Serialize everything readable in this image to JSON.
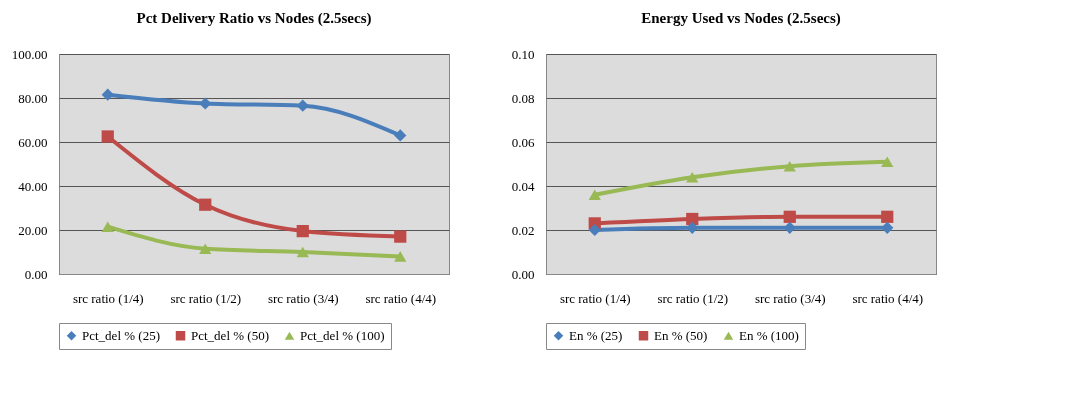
{
  "chart_data": [
    {
      "type": "line",
      "title": "Pct Delivery Ratio vs Nodes (2.5secs)",
      "categories": [
        "src ratio (1/4)",
        "src ratio (1/2)",
        "src ratio (3/4)",
        "src ratio (4/4)"
      ],
      "series": [
        {
          "name": "Pct_del % (25)",
          "color": "#4a7ebb",
          "marker": "diamond",
          "values": [
            81.5,
            77.5,
            76.5,
            63
          ]
        },
        {
          "name": "Pct_del % (50)",
          "color": "#be4b48",
          "marker": "square",
          "values": [
            62.5,
            31.5,
            19.5,
            17
          ]
        },
        {
          "name": "Pct_del % (100)",
          "color": "#98b954",
          "marker": "triangle",
          "values": [
            21.5,
            11.5,
            10,
            8
          ]
        }
      ],
      "ylim": [
        0,
        100
      ],
      "yticks": [
        {
          "value": 0,
          "label": "0.00"
        },
        {
          "value": 20,
          "label": "20.00"
        },
        {
          "value": 40,
          "label": "40.00"
        },
        {
          "value": 60,
          "label": "60.00"
        },
        {
          "value": 80,
          "label": "80.00"
        },
        {
          "value": 100,
          "label": "100.00"
        }
      ],
      "grid": "y",
      "legend": "bottom"
    },
    {
      "type": "line",
      "title": "Energy Used vs Nodes (2.5secs)",
      "categories": [
        "src ratio (1/4)",
        "src ratio (1/2)",
        "src ratio (3/4)",
        "src ratio (4/4)"
      ],
      "series": [
        {
          "name": "En % (25)",
          "color": "#4a7ebb",
          "marker": "diamond",
          "values": [
            0.02,
            0.021,
            0.021,
            0.021
          ]
        },
        {
          "name": "En % (50)",
          "color": "#be4b48",
          "marker": "square",
          "values": [
            0.023,
            0.025,
            0.026,
            0.026
          ]
        },
        {
          "name": "En % (100)",
          "color": "#98b954",
          "marker": "triangle",
          "values": [
            0.036,
            0.044,
            0.049,
            0.051
          ]
        }
      ],
      "ylim": [
        0,
        0.1
      ],
      "yticks": [
        {
          "value": 0,
          "label": "0.00"
        },
        {
          "value": 0.02,
          "label": "0.02"
        },
        {
          "value": 0.04,
          "label": "0.04"
        },
        {
          "value": 0.06,
          "label": "0.06"
        },
        {
          "value": 0.08,
          "label": "0.08"
        },
        {
          "value": 0.1,
          "label": "0.10"
        }
      ],
      "grid": "y",
      "legend": "bottom"
    }
  ]
}
